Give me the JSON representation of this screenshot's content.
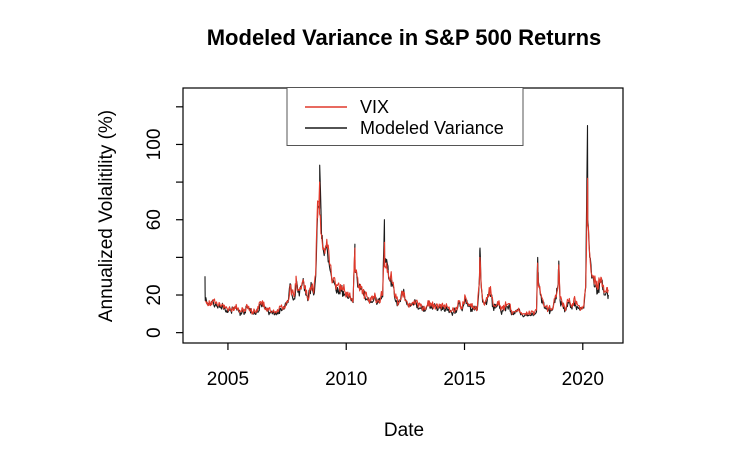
{
  "colors": {
    "background": "#ffffff",
    "vix_red": "#e0392b",
    "modeled_black": "#1a1a1a",
    "axis": "#000000",
    "legend_border": "#555555"
  },
  "chart_data": {
    "type": "line",
    "title": "Modeled Variance in S&P 500 Returns",
    "xlabel": "Date",
    "ylabel": "Annualized Volalitility (%)",
    "xlim": [
      2003.1,
      2021.7
    ],
    "ylim": [
      -5.5,
      130
    ],
    "grid": false,
    "x_ticks": {
      "values": [
        2005,
        2010,
        2015,
        2020
      ],
      "labels": [
        "2005",
        "2010",
        "2015",
        "2020"
      ]
    },
    "y_ticks": {
      "values": [
        0,
        20,
        40,
        60,
        80,
        100,
        120
      ],
      "labeled_values": [
        0,
        20,
        60,
        100
      ],
      "labels": [
        "0",
        "20",
        "60",
        "100"
      ]
    },
    "legend": {
      "position": "top",
      "entries": [
        {
          "label": "VIX",
          "color": "#e0392b"
        },
        {
          "label": "Modeled Variance",
          "color": "#1a1a1a"
        }
      ]
    },
    "texture_noise": {
      "relative_amplitude": 0.12,
      "absolute_amplitude": 0.4,
      "max_amplitude": 4,
      "substeps": 3
    },
    "series": [
      {
        "name": "Modeled Variance",
        "color": "#1a1a1a",
        "seed": 7,
        "x_start": 2004.042,
        "x_step": 0.0833333,
        "values": [
          17,
          15,
          16,
          15.5,
          16.5,
          14.5,
          14,
          15,
          13,
          14,
          12.5,
          12,
          12,
          11.5,
          12.5,
          13,
          12,
          11,
          10.5,
          12,
          11,
          14,
          13,
          10.5,
          10,
          11,
          11,
          11.5,
          15.5,
          16,
          13,
          12,
          11,
          10.5,
          10,
          9.5,
          9.5,
          10,
          13,
          12,
          12.5,
          14.5,
          16,
          26,
          20,
          18,
          26,
          21.5,
          23,
          25,
          25.5,
          20,
          17,
          22.5,
          24,
          20,
          30,
          63,
          66,
          50,
          43,
          44,
          43,
          35,
          30,
          28,
          25,
          24,
          23.5,
          22,
          22,
          20.5,
          19,
          19,
          17,
          16,
          33,
          29,
          24,
          23,
          21.5,
          19,
          18,
          16.5,
          16,
          16.5,
          20,
          15,
          16,
          18,
          19,
          37,
          39,
          29,
          29,
          25,
          19,
          17,
          15,
          16.5,
          21,
          20,
          16,
          14,
          14,
          15,
          16,
          16,
          12.5,
          13,
          12,
          13,
          12.5,
          16,
          13,
          13,
          14,
          13,
          12,
          13,
          14,
          13,
          13,
          12.5,
          11,
          10.5,
          11,
          12,
          13,
          16,
          12.5,
          14.5,
          18,
          15,
          14,
          12.5,
          12.5,
          13,
          12,
          28,
          24,
          16,
          15.5,
          17,
          23,
          20,
          14,
          13,
          14,
          16,
          11,
          11.5,
          13,
          14,
          14.5,
          11,
          10,
          10,
          11,
          12,
          9.5,
          9,
          9,
          10,
          9,
          9,
          10,
          9.5,
          11,
          27,
          20,
          17,
          13,
          12.5,
          12,
          11.5,
          12,
          17,
          18,
          26,
          17,
          15,
          13.5,
          12,
          16,
          15,
          12.5,
          17,
          14,
          13.5,
          12,
          12.5,
          13,
          24,
          60,
          40,
          29,
          28,
          25,
          21,
          26,
          27,
          23,
          20,
          21
        ],
        "events": [
          [
            2004.03,
            30
          ],
          [
            2008.88,
            89
          ],
          [
            2010.365,
            47
          ],
          [
            2011.615,
            60
          ],
          [
            2015.655,
            45
          ],
          [
            2018.095,
            40
          ],
          [
            2018.985,
            38
          ],
          [
            2020.2,
            110
          ],
          [
            2021.08,
            20
          ]
        ]
      },
      {
        "name": "VIX",
        "color": "#e0392b",
        "seed": 13,
        "x_start": 2004.042,
        "x_step": 0.0833333,
        "values": [
          16.5,
          16,
          17,
          16.5,
          17.5,
          15.5,
          15,
          16,
          14,
          15,
          13.5,
          13,
          13,
          12.5,
          13.5,
          14,
          13,
          12,
          11.5,
          13,
          12,
          15,
          14,
          11.5,
          11,
          12,
          12,
          12.5,
          16.5,
          17,
          14,
          13,
          12,
          11.5,
          11,
          10.5,
          10.5,
          11,
          14,
          13,
          13.5,
          15.5,
          17,
          25,
          21,
          19,
          25.5,
          22.5,
          24,
          26,
          26.5,
          21,
          18,
          23.5,
          25,
          21,
          31,
          61,
          63,
          52,
          45,
          46,
          45,
          37,
          31,
          29,
          26,
          25,
          24.5,
          23,
          23,
          21.5,
          20,
          20,
          18,
          17,
          32,
          30,
          25,
          24,
          22.5,
          20,
          19,
          17.5,
          17,
          17.5,
          21,
          16,
          17,
          19,
          20,
          35,
          37,
          30,
          30,
          26,
          20,
          18,
          16,
          17.5,
          22,
          21,
          17,
          15,
          15,
          16,
          17,
          17,
          13.5,
          14,
          13,
          14,
          13.5,
          17,
          14,
          14,
          15,
          14,
          13,
          14,
          15,
          14,
          14,
          13.5,
          12,
          11.5,
          12,
          13,
          14,
          17,
          13.5,
          15.5,
          19,
          16,
          15,
          13.5,
          13.5,
          14,
          13,
          26,
          25,
          17,
          16.5,
          18,
          24,
          21,
          15,
          14,
          15,
          17,
          12,
          12.5,
          14,
          15,
          15.5,
          12,
          11,
          11,
          12,
          13,
          10.5,
          10,
          10,
          11,
          10,
          10,
          11,
          10.5,
          12,
          25,
          21,
          18,
          14,
          13.5,
          13,
          12.5,
          13,
          18,
          19,
          25,
          18,
          16,
          14.5,
          13,
          17,
          16,
          13.5,
          18,
          15,
          14.5,
          13,
          13.5,
          14,
          25,
          57,
          42,
          31,
          30,
          27,
          23,
          28,
          29,
          25,
          22,
          24
        ],
        "events": [
          [
            2007.88,
            30
          ],
          [
            2008.79,
            70
          ],
          [
            2008.875,
            80
          ],
          [
            2010.37,
            45
          ],
          [
            2011.62,
            48
          ],
          [
            2015.65,
            40
          ],
          [
            2018.09,
            37
          ],
          [
            2018.98,
            36
          ],
          [
            2020.205,
            82
          ],
          [
            2021.08,
            22
          ]
        ]
      }
    ]
  }
}
